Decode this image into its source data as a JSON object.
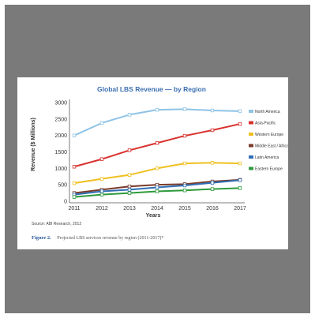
{
  "chart_data": {
    "type": "line",
    "title": "Global LBS Revenue — by Region",
    "xlabel": "Years",
    "ylabel": "Revenue ($ Millions)",
    "x": [
      2011,
      2012,
      2013,
      2014,
      2015,
      2016,
      2017
    ],
    "ylim": [
      0,
      3000
    ],
    "yticks": [
      0,
      500,
      1000,
      1500,
      2000,
      2500,
      3000
    ],
    "grid": false,
    "legend_position": "right",
    "series": [
      {
        "name": "North America",
        "color": "#8ec3e6",
        "values": [
          2000,
          2380,
          2630,
          2780,
          2800,
          2760,
          2740
        ]
      },
      {
        "name": "Asia-Pacific",
        "color": "#d8322e",
        "values": [
          1050,
          1280,
          1550,
          1770,
          1990,
          2160,
          2350
        ]
      },
      {
        "name": "Western Europe",
        "color": "#f0c020",
        "values": [
          550,
          680,
          800,
          1000,
          1150,
          1170,
          1150
        ]
      },
      {
        "name": "Middle East / Africa",
        "color": "#7a3b2a",
        "values": [
          250,
          350,
          450,
          500,
          520,
          600,
          650
        ]
      },
      {
        "name": "Latin America",
        "color": "#2f6fb5",
        "values": [
          200,
          300,
          350,
          420,
          480,
          560,
          640
        ]
      },
      {
        "name": "Eastern Europe",
        "color": "#2e9a3c",
        "values": [
          130,
          200,
          250,
          300,
          330,
          370,
          400
        ]
      }
    ]
  },
  "source_note": "Source: ABI Research, 2012",
  "caption": {
    "label": "Figure 2.",
    "text": "Projected LBS services revenue by region (2011-2017)*"
  }
}
